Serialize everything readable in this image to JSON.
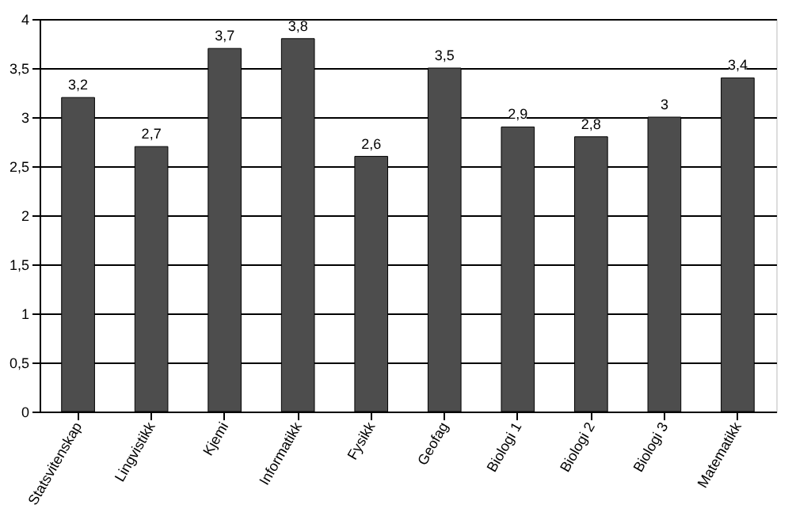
{
  "chart_data": {
    "type": "bar",
    "categories": [
      "Statsvitenskap",
      "Lingvistikk",
      "Kjemi",
      "Informatikk",
      "Fysikk",
      "Geofag",
      "Biologi 1",
      "Biologi 2",
      "Biologi 3",
      "Matematikk"
    ],
    "values": [
      3.2,
      2.7,
      3.7,
      3.8,
      2.6,
      3.5,
      2.9,
      2.8,
      3,
      3.4
    ],
    "value_labels": [
      "3,2",
      "2,7",
      "3,7",
      "3,8",
      "2,6",
      "3,5",
      "2,9",
      "2,8",
      "3",
      "3,4"
    ],
    "color": "#4d4d4d",
    "ylim": [
      0,
      4
    ],
    "yticks": [
      0,
      {
        "value": 0.5,
        "label": "0,5"
      },
      1,
      {
        "value": 1.5,
        "label": "1,5"
      },
      2,
      {
        "value": 2.5,
        "label": "2,5"
      },
      3,
      {
        "value": 3.5,
        "label": "3,5"
      },
      4
    ],
    "grid": "y"
  }
}
